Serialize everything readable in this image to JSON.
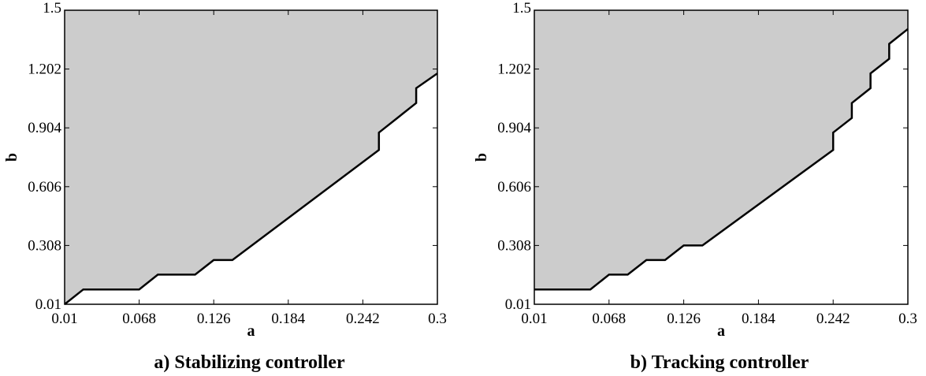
{
  "chart_data": [
    {
      "type": "area",
      "caption": "a) Stabilizing controller",
      "xlabel": "a",
      "ylabel": "b",
      "xlim": [
        0.01,
        0.3
      ],
      "ylim": [
        0.01,
        1.5
      ],
      "xticks": [
        "0.01",
        "0.068",
        "0.126",
        "0.184",
        "0.242",
        "0.3"
      ],
      "yticks": [
        "0.01",
        "0.308",
        "0.606",
        "0.904",
        "1.202",
        "1.5"
      ],
      "grid": false,
      "fill_color": "#cccccc",
      "boundary": {
        "x": [
          0.01,
          0.0245,
          0.0245,
          0.068,
          0.0825,
          0.0825,
          0.1115,
          0.126,
          0.126,
          0.1405,
          0.2545,
          0.2545,
          0.2835,
          0.2835,
          0.3
        ],
        "y": [
          0.01,
          0.085,
          0.085,
          0.085,
          0.16,
          0.16,
          0.16,
          0.234,
          0.234,
          0.234,
          0.792,
          0.88,
          1.03,
          1.105,
          1.18
        ]
      }
    },
    {
      "type": "area",
      "caption": "b) Tracking controller",
      "xlabel": "a",
      "ylabel": "b",
      "xlim": [
        0.01,
        0.3
      ],
      "ylim": [
        0.01,
        1.5
      ],
      "xticks": [
        "0.01",
        "0.068",
        "0.126",
        "0.184",
        "0.242",
        "0.3"
      ],
      "yticks": [
        "0.01",
        "0.308",
        "0.606",
        "0.904",
        "1.202",
        "1.5"
      ],
      "grid": false,
      "fill_color": "#cccccc",
      "boundary": {
        "x": [
          0.01,
          0.0535,
          0.068,
          0.0825,
          0.097,
          0.1115,
          0.126,
          0.1405,
          0.242,
          0.242,
          0.2565,
          0.2565,
          0.271,
          0.271,
          0.2855,
          0.2855,
          0.3
        ],
        "y": [
          0.085,
          0.085,
          0.16,
          0.16,
          0.234,
          0.234,
          0.308,
          0.308,
          0.792,
          0.88,
          0.954,
          1.03,
          1.105,
          1.18,
          1.254,
          1.33,
          1.405
        ]
      }
    }
  ]
}
